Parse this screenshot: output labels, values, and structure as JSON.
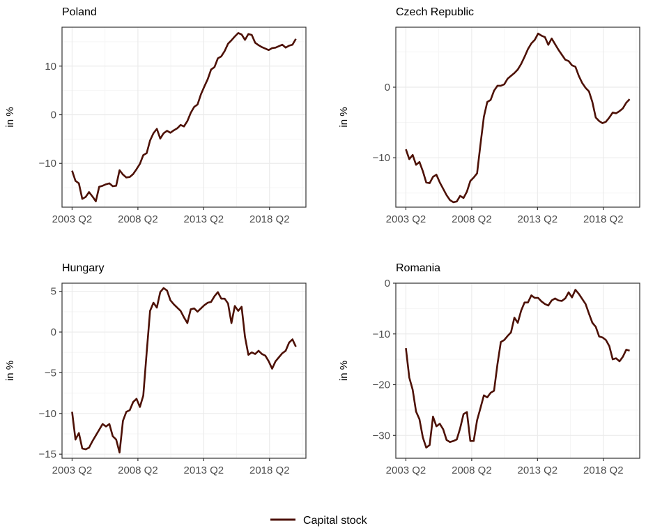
{
  "colors": {
    "series": "#4d1106",
    "panel_border": "#333333",
    "grid_major": "#ebebeb",
    "grid_minor": "#f5f5f5",
    "tick_text": "#4d4d4d"
  },
  "legend": {
    "label": "Capital stock",
    "position": "bottom-center"
  },
  "chart_data": [
    {
      "type": "line",
      "title": "Poland",
      "xlabel": "",
      "ylabel": "in %",
      "grid": true,
      "x_start": "2003 Q2",
      "x_end": "2020 Q2",
      "x_ticks": [
        "2003 Q2",
        "2008 Q2",
        "2013 Q2",
        "2018 Q2"
      ],
      "y_ticks": [
        -10,
        0,
        10
      ],
      "ylim": [
        -19,
        18
      ],
      "series": [
        {
          "name": "Capital stock",
          "values": [
            -11.5,
            -13.6,
            -14.1,
            -17.3,
            -16.9,
            -15.9,
            -16.8,
            -17.8,
            -14.8,
            -14.6,
            -14.3,
            -14.1,
            -14.7,
            -14.6,
            -11.4,
            -12.3,
            -12.9,
            -12.8,
            -12.2,
            -11.2,
            -10.1,
            -8.3,
            -7.9,
            -5.3,
            -3.8,
            -2.9,
            -4.9,
            -3.8,
            -3.3,
            -3.7,
            -3.2,
            -2.8,
            -2.1,
            -2.4,
            -1.3,
            0.4,
            1.6,
            2.1,
            4.2,
            5.8,
            7.3,
            9.3,
            9.8,
            11.6,
            12.0,
            13.1,
            14.6,
            15.3,
            16.1,
            16.8,
            16.5,
            15.4,
            16.6,
            16.4,
            14.8,
            14.3,
            13.9,
            13.6,
            13.3,
            13.7,
            13.8,
            14.1,
            14.4,
            13.8,
            14.2,
            14.4,
            15.6
          ]
        }
      ]
    },
    {
      "type": "line",
      "title": "Czech Republic",
      "xlabel": "",
      "ylabel": "in %",
      "grid": true,
      "x_start": "2003 Q2",
      "x_end": "2020 Q2",
      "x_ticks": [
        "2003 Q2",
        "2008 Q2",
        "2013 Q2",
        "2018 Q2"
      ],
      "y_ticks": [
        -10,
        0
      ],
      "ylim": [
        -17,
        8.5
      ],
      "series": [
        {
          "name": "Capital stock",
          "values": [
            -8.8,
            -10.2,
            -9.6,
            -11.0,
            -10.6,
            -11.9,
            -13.5,
            -13.6,
            -12.7,
            -12.4,
            -13.5,
            -14.4,
            -15.3,
            -16.0,
            -16.3,
            -16.2,
            -15.4,
            -15.7,
            -14.8,
            -13.3,
            -12.8,
            -12.2,
            -8.1,
            -4.2,
            -2.1,
            -1.8,
            -0.5,
            0.2,
            0.2,
            0.4,
            1.2,
            1.6,
            2.0,
            2.5,
            3.3,
            4.3,
            5.4,
            6.2,
            6.7,
            7.6,
            7.3,
            7.1,
            6.0,
            6.9,
            6.1,
            5.3,
            4.6,
            3.9,
            3.7,
            3.1,
            2.9,
            1.6,
            0.6,
            -0.1,
            -0.6,
            -2.1,
            -4.3,
            -4.8,
            -5.1,
            -4.9,
            -4.3,
            -3.6,
            -3.7,
            -3.4,
            -3.0,
            -2.2,
            -1.7
          ]
        }
      ]
    },
    {
      "type": "line",
      "title": "Hungary",
      "xlabel": "",
      "ylabel": "in %",
      "grid": true,
      "x_start": "2003 Q2",
      "x_end": "2020 Q2",
      "x_ticks": [
        "2003 Q2",
        "2008 Q2",
        "2013 Q2",
        "2018 Q2"
      ],
      "y_ticks": [
        -15,
        -10,
        -5,
        0,
        5
      ],
      "ylim": [
        -15.5,
        6
      ],
      "series": [
        {
          "name": "Capital stock",
          "values": [
            -9.8,
            -13.2,
            -12.4,
            -14.3,
            -14.4,
            -14.2,
            -13.4,
            -12.7,
            -12.0,
            -11.3,
            -11.6,
            -11.3,
            -12.8,
            -13.2,
            -14.8,
            -10.9,
            -9.8,
            -9.6,
            -8.6,
            -8.2,
            -9.2,
            -7.8,
            -2.5,
            2.6,
            3.6,
            3.0,
            4.9,
            5.4,
            5.1,
            3.9,
            3.4,
            3.0,
            2.6,
            1.8,
            1.1,
            2.8,
            2.9,
            2.5,
            2.9,
            3.3,
            3.6,
            3.7,
            4.4,
            4.9,
            4.1,
            4.1,
            3.5,
            1.1,
            3.2,
            2.6,
            3.1,
            -0.6,
            -2.8,
            -2.5,
            -2.7,
            -2.3,
            -2.7,
            -2.9,
            -3.6,
            -4.5,
            -3.6,
            -3.1,
            -2.6,
            -2.3,
            -1.3,
            -0.9,
            -1.8
          ]
        }
      ]
    },
    {
      "type": "line",
      "title": "Romania",
      "xlabel": "",
      "ylabel": "in %",
      "grid": true,
      "x_start": "2003 Q2",
      "x_end": "2020 Q2",
      "x_ticks": [
        "2003 Q2",
        "2008 Q2",
        "2013 Q2",
        "2018 Q2"
      ],
      "y_ticks": [
        -30,
        -20,
        -10,
        0
      ],
      "ylim": [
        -34.5,
        0
      ],
      "series": [
        {
          "name": "Capital stock",
          "values": [
            -12.8,
            -18.6,
            -21.0,
            -25.3,
            -26.8,
            -30.4,
            -32.4,
            -31.9,
            -26.3,
            -28.2,
            -27.7,
            -28.8,
            -30.9,
            -31.3,
            -31.1,
            -30.8,
            -28.6,
            -25.8,
            -25.4,
            -31.1,
            -31.1,
            -27.0,
            -24.6,
            -22.1,
            -22.5,
            -21.6,
            -21.2,
            -16.0,
            -11.6,
            -11.2,
            -10.4,
            -9.7,
            -6.8,
            -7.8,
            -5.4,
            -3.8,
            -3.8,
            -2.4,
            -2.9,
            -2.9,
            -3.6,
            -4.1,
            -4.4,
            -3.4,
            -3.0,
            -3.4,
            -3.5,
            -3.0,
            -1.8,
            -2.8,
            -1.3,
            -2.1,
            -3.1,
            -4.1,
            -6.0,
            -7.8,
            -8.6,
            -10.5,
            -10.7,
            -11.2,
            -12.4,
            -15.0,
            -14.8,
            -15.4,
            -14.5,
            -13.1,
            -13.3
          ]
        }
      ]
    }
  ]
}
